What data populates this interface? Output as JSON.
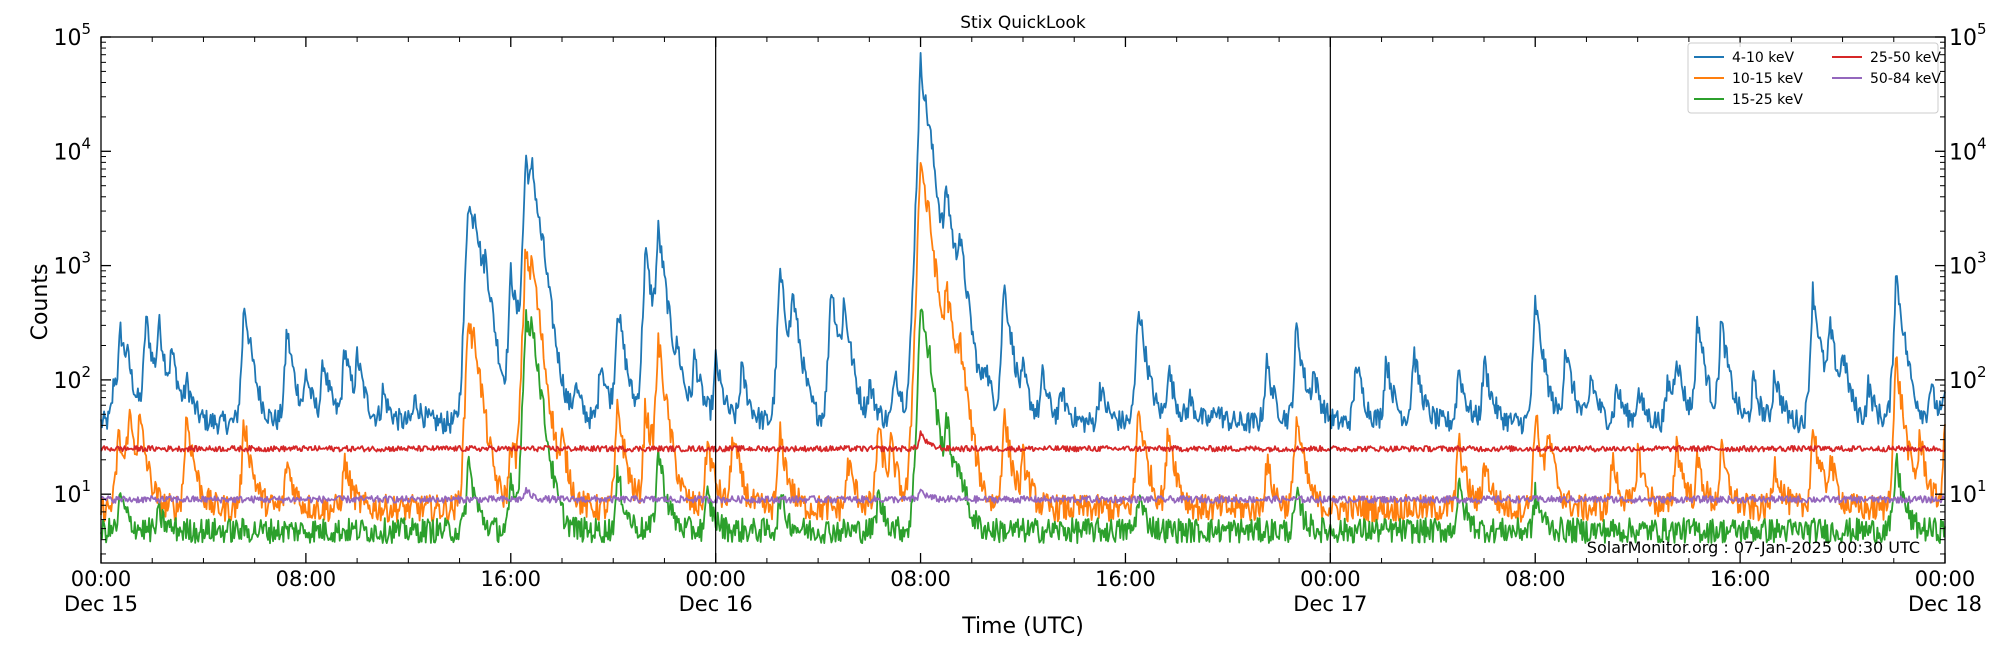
{
  "chart_data": {
    "type": "line",
    "title": "Stix QuickLook",
    "xlabel": "Time (UTC)",
    "ylabel": "Counts",
    "yscale": "log",
    "ylim": [
      2.5,
      100000
    ],
    "xlim": [
      "2024-12-15 00:00",
      "2024-12-18 00:00"
    ],
    "y_ticks": [
      {
        "base": "10",
        "exp": "1",
        "value": 10
      },
      {
        "base": "10",
        "exp": "2",
        "value": 100
      },
      {
        "base": "10",
        "exp": "3",
        "value": 1000
      },
      {
        "base": "10",
        "exp": "4",
        "value": 10000
      },
      {
        "base": "10",
        "exp": "5",
        "value": 100000
      }
    ],
    "x_ticks": [
      {
        "time": "2024-12-15 00:00",
        "label": "00:00",
        "sublabel": "Dec 15"
      },
      {
        "time": "2024-12-15 08:00",
        "label": "08:00",
        "sublabel": ""
      },
      {
        "time": "2024-12-15 16:00",
        "label": "16:00",
        "sublabel": ""
      },
      {
        "time": "2024-12-16 00:00",
        "label": "00:00",
        "sublabel": "Dec 16"
      },
      {
        "time": "2024-12-16 08:00",
        "label": "08:00",
        "sublabel": ""
      },
      {
        "time": "2024-12-16 16:00",
        "label": "16:00",
        "sublabel": ""
      },
      {
        "time": "2024-12-17 00:00",
        "label": "00:00",
        "sublabel": "Dec 17"
      },
      {
        "time": "2024-12-17 08:00",
        "label": "08:00",
        "sublabel": ""
      },
      {
        "time": "2024-12-17 16:00",
        "label": "16:00",
        "sublabel": ""
      },
      {
        "time": "2024-12-18 00:00",
        "label": "00:00",
        "sublabel": "Dec 18"
      }
    ],
    "day_dividers": [
      "2024-12-16 00:00",
      "2024-12-17 00:00"
    ],
    "grid": false,
    "legend_position": "top-right",
    "annotation": "SolarMonitor.org : 07-Jan-2025 00:30 UTC",
    "series": [
      {
        "name": "4-10 keV",
        "color": "#1f77b4",
        "baseline": 42,
        "peaks": [
          [
            "2024-12-15 00:30",
            100
          ],
          [
            "2024-12-15 00:45",
            260
          ],
          [
            "2024-12-15 01:00",
            110
          ],
          [
            "2024-12-15 01:45",
            360
          ],
          [
            "2024-12-15 02:15",
            300
          ],
          [
            "2024-12-15 02:45",
            160
          ],
          [
            "2024-12-15 03:20",
            90
          ],
          [
            "2024-12-15 05:35",
            480
          ],
          [
            "2024-12-15 07:15",
            280
          ],
          [
            "2024-12-15 08:00",
            110
          ],
          [
            "2024-12-15 08:40",
            150
          ],
          [
            "2024-12-15 09:30",
            200
          ],
          [
            "2024-12-15 10:00",
            150
          ],
          [
            "2024-12-15 11:00",
            80
          ],
          [
            "2024-12-15 12:15",
            70
          ],
          [
            "2024-12-15 14:20",
            4000
          ],
          [
            "2024-12-15 14:35",
            2000
          ],
          [
            "2024-12-15 15:00",
            700
          ],
          [
            "2024-12-15 16:00",
            900
          ],
          [
            "2024-12-15 16:35",
            9000
          ],
          [
            "2024-12-15 16:50",
            4500
          ],
          [
            "2024-12-15 17:15",
            350
          ],
          [
            "2024-12-15 18:30",
            90
          ],
          [
            "2024-12-15 19:30",
            160
          ],
          [
            "2024-12-15 20:10",
            450
          ],
          [
            "2024-12-15 21:15",
            1400
          ],
          [
            "2024-12-15 21:45",
            2000
          ],
          [
            "2024-12-15 22:30",
            130
          ],
          [
            "2024-12-15 23:10",
            160
          ],
          [
            "2024-12-16 00:00",
            150
          ],
          [
            "2024-12-16 01:00",
            130
          ],
          [
            "2024-12-16 02:30",
            900
          ],
          [
            "2024-12-16 03:00",
            500
          ],
          [
            "2024-12-16 04:30",
            700
          ],
          [
            "2024-12-16 05:00",
            420
          ],
          [
            "2024-12-16 06:00",
            90
          ],
          [
            "2024-12-16 07:00",
            130
          ],
          [
            "2024-12-16 08:00",
            60000
          ],
          [
            "2024-12-16 08:20",
            3000
          ],
          [
            "2024-12-16 09:00",
            4200
          ],
          [
            "2024-12-16 09:30",
            1500
          ],
          [
            "2024-12-16 10:30",
            130
          ],
          [
            "2024-12-16 11:15",
            700
          ],
          [
            "2024-12-16 12:00",
            100
          ],
          [
            "2024-12-16 12:45",
            110
          ],
          [
            "2024-12-16 13:30",
            80
          ],
          [
            "2024-12-16 15:00",
            90
          ],
          [
            "2024-12-16 16:30",
            470
          ],
          [
            "2024-12-16 17:40",
            130
          ],
          [
            "2024-12-16 18:30",
            70
          ],
          [
            "2024-12-16 19:30",
            60
          ],
          [
            "2024-12-16 21:30",
            150
          ],
          [
            "2024-12-16 22:40",
            300
          ],
          [
            "2024-12-16 23:20",
            110
          ],
          [
            "2024-12-17 01:00",
            150
          ],
          [
            "2024-12-17 02:10",
            160
          ],
          [
            "2024-12-17 03:15",
            180
          ],
          [
            "2024-12-17 05:00",
            130
          ],
          [
            "2024-12-17 06:00",
            150
          ],
          [
            "2024-12-17 08:00",
            480
          ],
          [
            "2024-12-17 09:10",
            200
          ],
          [
            "2024-12-17 10:10",
            110
          ],
          [
            "2024-12-17 11:10",
            90
          ],
          [
            "2024-12-17 12:00",
            80
          ],
          [
            "2024-12-17 13:10",
            100
          ],
          [
            "2024-12-17 13:30",
            160
          ],
          [
            "2024-12-17 14:20",
            350
          ],
          [
            "2024-12-17 15:15",
            330
          ],
          [
            "2024-12-17 16:30",
            100
          ],
          [
            "2024-12-17 17:20",
            120
          ],
          [
            "2024-12-17 18:50",
            620
          ],
          [
            "2024-12-17 19:30",
            280
          ],
          [
            "2024-12-17 20:00",
            150
          ],
          [
            "2024-12-17 21:00",
            90
          ],
          [
            "2024-12-17 22:05",
            850
          ],
          [
            "2024-12-17 23:25",
            90
          ],
          [
            "2024-12-18 00:00",
            70
          ],
          [
            "2024-12-18 00:30",
            60
          ]
        ]
      },
      {
        "name": "10-15 keV",
        "color": "#ff7f0e",
        "baseline": 7.5,
        "peaks": [
          [
            "2024-12-15 00:40",
            35
          ],
          [
            "2024-12-15 01:05",
            50
          ],
          [
            "2024-12-15 01:30",
            40
          ],
          [
            "2024-12-15 03:20",
            50
          ],
          [
            "2024-12-15 05:35",
            45
          ],
          [
            "2024-12-15 07:15",
            20
          ],
          [
            "2024-12-15 09:30",
            20
          ],
          [
            "2024-12-15 14:20",
            380
          ],
          [
            "2024-12-15 14:35",
            120
          ],
          [
            "2024-12-15 16:00",
            30
          ],
          [
            "2024-12-15 16:35",
            1500
          ],
          [
            "2024-12-15 16:50",
            600
          ],
          [
            "2024-12-15 18:00",
            25
          ],
          [
            "2024-12-15 20:10",
            60
          ],
          [
            "2024-12-15 21:15",
            60
          ],
          [
            "2024-12-15 21:45",
            220
          ],
          [
            "2024-12-15 23:40",
            30
          ],
          [
            "2024-12-16 00:40",
            35
          ],
          [
            "2024-12-16 02:30",
            35
          ],
          [
            "2024-12-16 05:10",
            20
          ],
          [
            "2024-12-16 06:20",
            40
          ],
          [
            "2024-12-16 06:50",
            25
          ],
          [
            "2024-12-16 08:00",
            9000
          ],
          [
            "2024-12-16 08:20",
            600
          ],
          [
            "2024-12-16 09:00",
            550
          ],
          [
            "2024-12-16 09:30",
            180
          ],
          [
            "2024-12-16 11:15",
            50
          ],
          [
            "2024-12-16 12:00",
            20
          ],
          [
            "2024-12-16 16:30",
            60
          ],
          [
            "2024-12-16 17:40",
            40
          ],
          [
            "2024-12-16 21:30",
            20
          ],
          [
            "2024-12-16 22:40",
            50
          ],
          [
            "2024-12-17 05:00",
            30
          ],
          [
            "2024-12-17 06:00",
            20
          ],
          [
            "2024-12-17 08:00",
            50
          ],
          [
            "2024-12-17 08:30",
            30
          ],
          [
            "2024-12-17 11:00",
            20
          ],
          [
            "2024-12-17 12:00",
            25
          ],
          [
            "2024-12-17 13:30",
            30
          ],
          [
            "2024-12-17 14:20",
            20
          ],
          [
            "2024-12-17 15:15",
            25
          ],
          [
            "2024-12-17 17:20",
            20
          ],
          [
            "2024-12-17 18:50",
            40
          ],
          [
            "2024-12-17 19:30",
            20
          ],
          [
            "2024-12-17 22:05",
            150
          ],
          [
            "2024-12-17 23:00",
            30
          ],
          [
            "2024-12-18 00:00",
            40
          ]
        ]
      },
      {
        "name": "15-25 keV",
        "color": "#2ca02c",
        "baseline": 4.8,
        "peaks": [
          [
            "2024-12-15 00:45",
            10
          ],
          [
            "2024-12-15 02:15",
            7
          ],
          [
            "2024-12-15 14:20",
            20
          ],
          [
            "2024-12-15 16:00",
            12
          ],
          [
            "2024-12-15 16:35",
            400
          ],
          [
            "2024-12-15 16:50",
            200
          ],
          [
            "2024-12-15 20:10",
            15
          ],
          [
            "2024-12-15 21:45",
            25
          ],
          [
            "2024-12-15 23:40",
            10
          ],
          [
            "2024-12-16 02:30",
            10
          ],
          [
            "2024-12-16 06:20",
            10
          ],
          [
            "2024-12-16 08:00",
            500
          ],
          [
            "2024-12-16 08:20",
            60
          ],
          [
            "2024-12-16 09:00",
            40
          ],
          [
            "2024-12-16 09:30",
            15
          ],
          [
            "2024-12-16 16:30",
            10
          ],
          [
            "2024-12-16 22:40",
            10
          ],
          [
            "2024-12-17 05:00",
            12
          ],
          [
            "2024-12-17 08:00",
            10
          ],
          [
            "2024-12-17 22:05",
            20
          ]
        ]
      },
      {
        "name": "25-50 keV",
        "color": "#d62728",
        "baseline": 25,
        "peaks": [
          [
            "2024-12-16 08:00",
            35
          ]
        ]
      },
      {
        "name": "50-84 keV",
        "color": "#9467bd",
        "baseline": 9,
        "peaks": [
          [
            "2024-12-15 16:35",
            11
          ],
          [
            "2024-12-16 08:00",
            11
          ]
        ]
      }
    ]
  }
}
